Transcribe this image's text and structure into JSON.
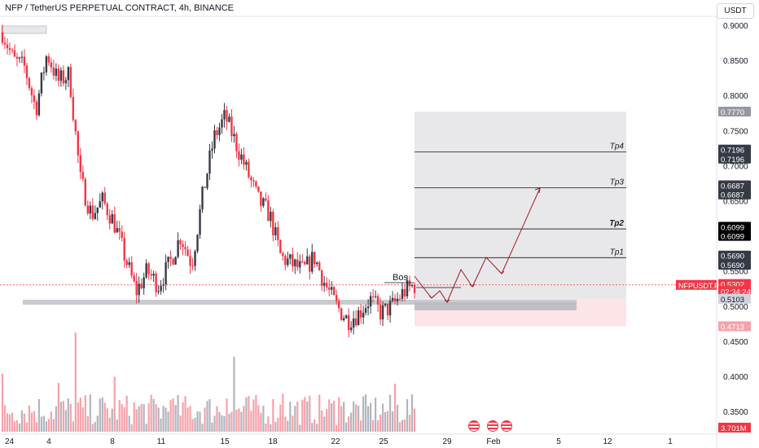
{
  "header": {
    "title": "NFP / TetherUS PERPETUAL CONTRACT, 4h, BINANCE",
    "currency_button": "USDT"
  },
  "chart_data": {
    "type": "candlestick",
    "symbol": "NFPUSDT.P",
    "timeframe": "4h",
    "ylim": [
      0.33,
      0.93
    ],
    "y_ticks": [
      "0.9000",
      "0.8500",
      "0.8000",
      "0.7500",
      "0.7000",
      "0.6500",
      "0.6000",
      "0.5500",
      "0.5000",
      "0.4500",
      "0.4000",
      "0.3500"
    ],
    "x_ticks": [
      "24",
      "4",
      "8",
      "11",
      "15",
      "18",
      "22",
      "25",
      "29",
      "Feb",
      "5",
      "12",
      "1"
    ],
    "price_path": [
      0.89,
      0.85,
      0.84,
      0.78,
      0.86,
      0.82,
      0.83,
      0.68,
      0.63,
      0.65,
      0.62,
      0.57,
      0.52,
      0.55,
      0.53,
      0.56,
      0.6,
      0.56,
      0.66,
      0.74,
      0.77,
      0.73,
      0.69,
      0.65,
      0.63,
      0.57,
      0.56,
      0.55,
      0.57,
      0.53,
      0.5,
      0.48,
      0.49,
      0.51,
      0.49,
      0.5,
      0.52,
      0.53
    ],
    "volume_axis_label": "3.701M",
    "levels": [
      {
        "name": "Tp4",
        "price": 0.7196
      },
      {
        "name": "Tp3",
        "price": 0.6687
      },
      {
        "name": "Tp2",
        "price": 0.6099
      },
      {
        "name": "Tp1",
        "price": 0.569
      }
    ],
    "annotations": [
      {
        "text": "Bos",
        "price": 0.53
      }
    ],
    "price_labels": [
      {
        "text": "0.7770",
        "price": 0.777,
        "bg": "#9598a1",
        "fg": "#ffffff"
      },
      {
        "text": "0.7196",
        "price": 0.723,
        "bg": "#363a45",
        "fg": "#ffffff"
      },
      {
        "text": "0.7196",
        "price": 0.71,
        "bg": "#363a45",
        "fg": "#ffffff"
      },
      {
        "text": "0.6687",
        "price": 0.672,
        "bg": "#363a45",
        "fg": "#ffffff"
      },
      {
        "text": "0.6687",
        "price": 0.659,
        "bg": "#363a45",
        "fg": "#ffffff"
      },
      {
        "text": "0.6099",
        "price": 0.613,
        "bg": "#000000",
        "fg": "#ffffff"
      },
      {
        "text": "0.6099",
        "price": 0.6,
        "bg": "#000000",
        "fg": "#ffffff"
      },
      {
        "text": "0.5690",
        "price": 0.572,
        "bg": "#363a45",
        "fg": "#ffffff"
      },
      {
        "text": "0.5690",
        "price": 0.559,
        "bg": "#363a45",
        "fg": "#ffffff"
      },
      {
        "text": "0.5302",
        "price": 0.5315,
        "bg": "#f23645",
        "fg": "#ffffff"
      },
      {
        "text": "02:34:24",
        "price": 0.5215,
        "bg": "#f23645",
        "fg": "#ffffff"
      },
      {
        "text": "0.5103",
        "price": 0.5103,
        "bg": "#d1d4dc",
        "fg": "#131722"
      },
      {
        "text": "0.4713",
        "price": 0.4713,
        "bg": "#f7a1a8",
        "fg": "#ffffff"
      }
    ],
    "symbol_tag": "NFPUSDT.P",
    "colors": {
      "up": "#363a45",
      "down": "#f23645",
      "vol_up": "#b2b5be",
      "vol_down": "#f7a1a8",
      "target_zone": "#e8e8ea",
      "stop_zone": "#fde4e6",
      "projection": "#a01923"
    }
  }
}
